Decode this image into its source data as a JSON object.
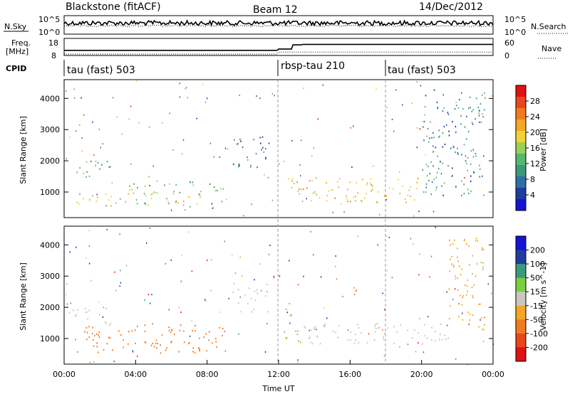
{
  "header": {
    "title": "Blackstone (fitACF)",
    "beam": "Beam 12",
    "date": "14/Dec/2012"
  },
  "top_panel": {
    "left_label": "N.Sky",
    "left_ticks": [
      "10^5",
      "10^0"
    ],
    "right_ticks": [
      "10^5",
      "10^0"
    ],
    "right_label": "N.Search"
  },
  "freq_panel": {
    "left_label_line1": "Freq.",
    "left_label_line2": "[MHz]",
    "left_ticks": [
      "18",
      "8"
    ],
    "right_ticks": [
      "60",
      "0"
    ],
    "right_label": "Nave"
  },
  "cpid": {
    "label": "CPID",
    "segments": [
      {
        "name": "tau (fast) 503",
        "start_hour": 0
      },
      {
        "name": "rbsp-tau 210",
        "start_hour": 12
      },
      {
        "name": "tau (fast) 503",
        "start_hour": 18
      }
    ]
  },
  "x_axis": {
    "label": "Time UT",
    "ticks": [
      "00:00",
      "04:00",
      "08:00",
      "12:00",
      "16:00",
      "20:00",
      "00:00"
    ]
  },
  "colors": {
    "power": [
      "#1414d2",
      "#1e3ca0",
      "#2f6fa6",
      "#3a9a7a",
      "#55b86a",
      "#9bd053",
      "#f5d233",
      "#f5a623",
      "#f07b1f",
      "#e8471e",
      "#e01111"
    ],
    "velocity": [
      "#1414d2",
      "#1e3ca0",
      "#3a9a7a",
      "#7ccd42",
      "#c8c8be",
      "#f5a623",
      "#f07b1f",
      "#e8471e",
      "#e01111"
    ]
  },
  "chart_data": [
    {
      "type": "heatmap",
      "title": "Power",
      "xlabel": "",
      "ylabel": "Slant Range [km]",
      "xlim": [
        0,
        24
      ],
      "ylim": [
        180,
        4600
      ],
      "yticks": [
        1000,
        2000,
        3000,
        4000
      ],
      "colorbar": {
        "label": "Power [dB]",
        "ticks": [
          "4",
          "8",
          "12",
          "16",
          "20",
          "24",
          "28"
        ],
        "range": [
          0,
          32
        ]
      },
      "regions": [
        {
          "x": [
            0.2,
            2.6
          ],
          "y": [
            1450,
            2050
          ],
          "level": 12
        },
        {
          "x": [
            0.6,
            7.8
          ],
          "y": [
            550,
            1000
          ],
          "level": 18
        },
        {
          "x": [
            3.5,
            9.0
          ],
          "y": [
            950,
            1400
          ],
          "level": 14
        },
        {
          "x": [
            9.4,
            11.4
          ],
          "y": [
            1800,
            2800
          ],
          "level": 7
        },
        {
          "x": [
            12.5,
            20.0
          ],
          "y": [
            650,
            1500
          ],
          "level": 20
        },
        {
          "x": [
            20.0,
            23.5
          ],
          "y": [
            900,
            4300
          ],
          "level": 9
        }
      ]
    },
    {
      "type": "heatmap",
      "title": "Velocity",
      "xlabel": "Time UT",
      "ylabel": "Slant Range [km]",
      "xlim": [
        0,
        24
      ],
      "ylim": [
        180,
        4600
      ],
      "yticks": [
        1000,
        2000,
        3000,
        4000
      ],
      "colorbar": {
        "label": "Velocity [m s^-1]",
        "ticks": [
          "200",
          "100",
          "50",
          "15",
          "-15",
          "-50",
          "-100",
          "-200"
        ]
      },
      "regions": [
        {
          "x": [
            0.2,
            2.6
          ],
          "y": [
            1450,
            2050
          ],
          "level": -10
        },
        {
          "x": [
            0.6,
            9.0
          ],
          "y": [
            550,
            1500
          ],
          "level": -60
        },
        {
          "x": [
            9.4,
            11.4
          ],
          "y": [
            1800,
            2800
          ],
          "level": -5
        },
        {
          "x": [
            12.3,
            13.2
          ],
          "y": [
            900,
            2000
          ],
          "level": 30
        },
        {
          "x": [
            13.2,
            21.5
          ],
          "y": [
            800,
            1500
          ],
          "level": 0
        },
        {
          "x": [
            21.5,
            23.5
          ],
          "y": [
            1300,
            4300
          ],
          "level": -20
        }
      ]
    }
  ]
}
